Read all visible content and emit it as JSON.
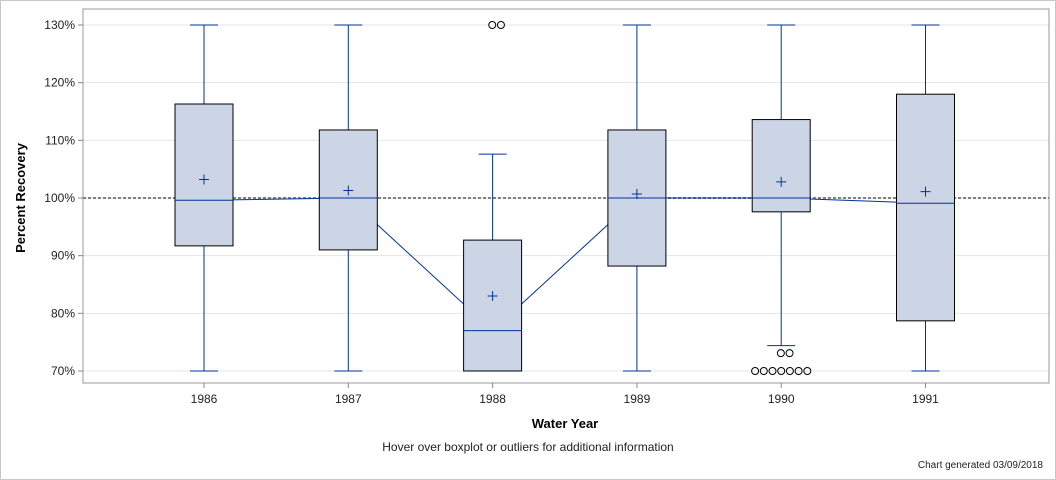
{
  "chart_data": {
    "type": "boxplot",
    "xlabel": "Water Year",
    "ylabel": "Percent Recovery",
    "ylim": [
      68,
      132
    ],
    "yticks": [
      70,
      80,
      90,
      100,
      110,
      120,
      130
    ],
    "ytick_labels": [
      "70%",
      "80%",
      "90%",
      "100%",
      "110%",
      "120%",
      "130%"
    ],
    "reference_line": 100,
    "grid": true,
    "categories": [
      "1986",
      "1987",
      "1988",
      "1989",
      "1990",
      "1991"
    ],
    "boxes": [
      {
        "year": "1986",
        "min": 70,
        "q1": 91.7,
        "median": 99.6,
        "q3": 116.3,
        "max": 130,
        "mean": 103.2,
        "outliers": []
      },
      {
        "year": "1987",
        "min": 70,
        "q1": 91.0,
        "median": 100.0,
        "q3": 111.8,
        "max": 130,
        "mean": 101.3,
        "outliers": []
      },
      {
        "year": "1988",
        "min": 70,
        "q1": 70.0,
        "median": 77.0,
        "q3": 92.7,
        "max": 107.6,
        "mean": 83.0,
        "outliers": [
          130,
          130
        ]
      },
      {
        "year": "1989",
        "min": 70,
        "q1": 88.2,
        "median": 100.0,
        "q3": 111.8,
        "max": 130,
        "mean": 100.7,
        "outliers": []
      },
      {
        "year": "1990",
        "min": 74.4,
        "q1": 97.6,
        "median": 100.0,
        "q3": 113.6,
        "max": 130,
        "mean": 102.8,
        "outliers": [
          73.1,
          73.1,
          70,
          70,
          70,
          70,
          70,
          70,
          70
        ]
      },
      {
        "year": "1991",
        "min": 70,
        "q1": 78.7,
        "median": 99.1,
        "q3": 118.0,
        "max": 130,
        "mean": 101.1,
        "outliers": []
      }
    ],
    "colors": {
      "box_fill": "#cbd5e6",
      "box_border": "#000000",
      "whisker": "#003399",
      "median_line": "#003399",
      "outlier": "#000000",
      "reference": "#808080"
    }
  },
  "footer": "Hover over boxplot or outliers for additional information",
  "generated": "Chart generated 03/09/2018"
}
